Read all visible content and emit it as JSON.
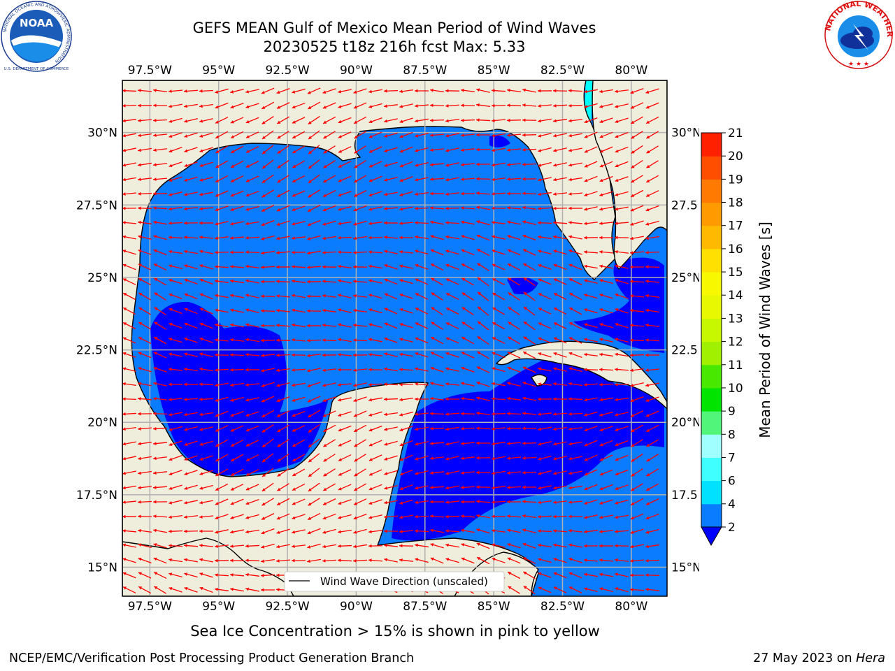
{
  "header": {
    "title_line1": "GEFS MEAN Gulf of Mexico Mean Period of Wind Waves",
    "title_line2": "20230525 t18z 216h fcst   Max: 5.33"
  },
  "logos": {
    "left": "NOAA",
    "left_ring": "NATIONAL OCEANIC AND ATMOSPHERIC ADMINISTRATION",
    "left_bottom": "U.S. DEPARTMENT OF COMMERCE",
    "right_ring": "NATIONAL WEATHER SERVICE"
  },
  "map": {
    "lon_min": -98.5,
    "lon_max": -78.7,
    "lat_min": 14.0,
    "lat_max": 31.8,
    "lon_ticks": [
      -97.5,
      -95,
      -92.5,
      -90,
      -87.5,
      -85,
      -82.5,
      -80
    ],
    "lon_labels": [
      "97.5°W",
      "95°W",
      "92.5°W",
      "90°W",
      "87.5°W",
      "85°W",
      "82.5°W",
      "80°W"
    ],
    "lat_ticks": [
      30,
      27.5,
      25,
      22.5,
      20,
      17.5,
      15
    ],
    "lat_labels_left": [
      "30°N",
      "27.5°N",
      "25°N",
      "22.5°N",
      "20°N",
      "17.5°N",
      "15°N"
    ],
    "lat_labels_right": [
      "30°N",
      "27.5",
      "25°N",
      "22.5",
      "20°N",
      "17.5",
      "15°N"
    ],
    "land_color": "#efeedc",
    "ocean_color": "#0a7cff",
    "deep_color": "#0000ff",
    "arrow_color": "#ff0000",
    "legend_label": "Wind Wave Direction (unscaled)"
  },
  "colorbar": {
    "label": "Mean Period of Wind Waves [s]",
    "ticks": [
      "2",
      "4",
      "6",
      "7",
      "8",
      "9",
      "10",
      "11",
      "12",
      "13",
      "14",
      "15",
      "16",
      "17",
      "18",
      "19",
      "20",
      "21"
    ],
    "colors": [
      "#0a7cff",
      "#00e0ff",
      "#40ffff",
      "#a0ffff",
      "#50f57a",
      "#00e400",
      "#48e800",
      "#a0f000",
      "#c8f800",
      "#e8f800",
      "#f8f800",
      "#ffe000",
      "#ffba00",
      "#ff9a00",
      "#ff7a00",
      "#ff4e00",
      "#ff2000"
    ],
    "under_color": "#0000ff"
  },
  "notes": {
    "ice": "Sea Ice Concentration > 15% is shown in pink to yellow",
    "footer_left": "NCEP/EMC/Verification Post Processing Product Generation Branch",
    "footer_date": "27 May 2023 on ",
    "footer_host": "Hera"
  }
}
